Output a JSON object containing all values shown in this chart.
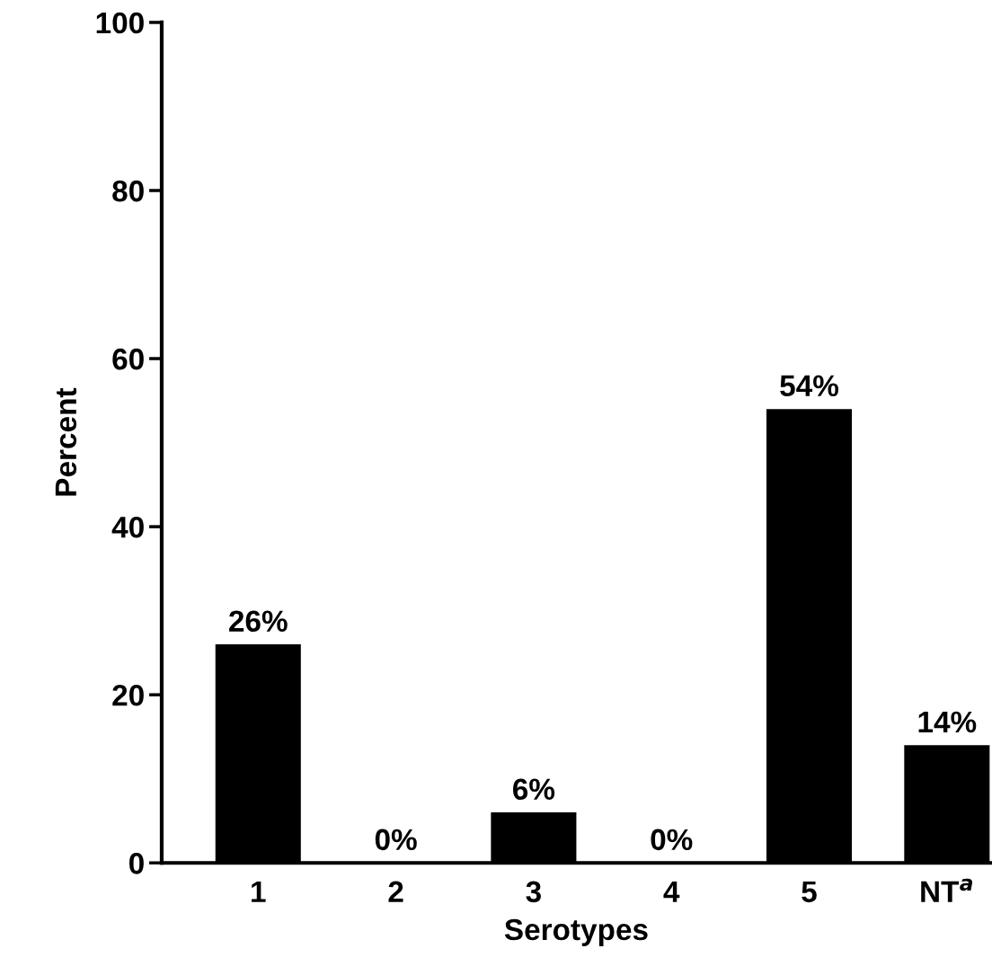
{
  "chart_data": {
    "type": "bar",
    "categories": [
      "1",
      "2",
      "3",
      "4",
      "5",
      "NT$^{a}$"
    ],
    "values": [
      26,
      0,
      6,
      0,
      54,
      14
    ],
    "value_labels": [
      "26%",
      "0%",
      "6%",
      "0%",
      "54%",
      "14%"
    ],
    "color": "#000000",
    "xlabel": "Serotypes",
    "ylabel": "Percent",
    "ylim": [
      0,
      100
    ],
    "yticks": [
      0,
      20,
      40,
      60,
      80,
      100
    ],
    "grid": false,
    "legend": false
  }
}
